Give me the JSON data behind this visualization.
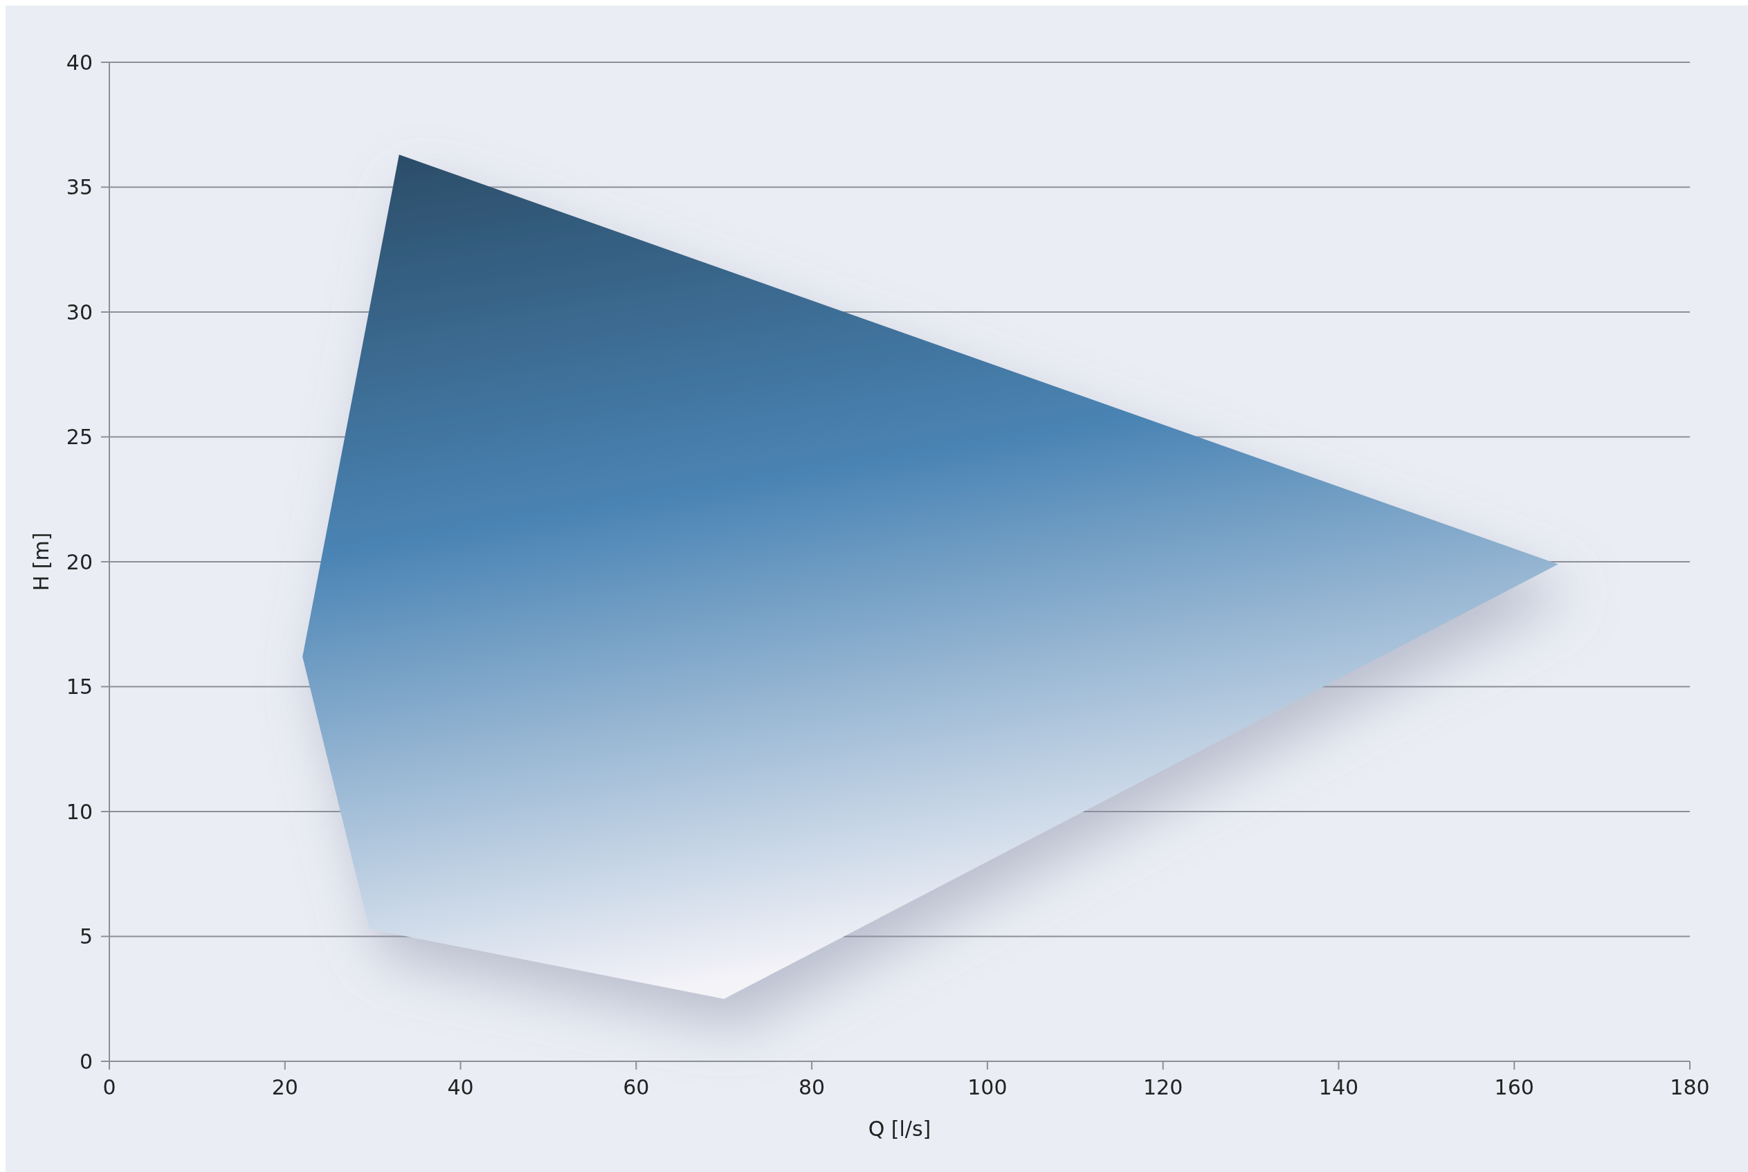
{
  "chart_data": {
    "type": "area",
    "xlabel": "Q [l/s]",
    "ylabel": "H [m]",
    "series": [
      {
        "color": "#4a84b4",
        "x": [
          33,
          165,
          70,
          29.6,
          22,
          33
        ],
        "values": [
          36.3,
          19.9,
          2.5,
          5.3,
          16.2,
          36.3
        ]
      }
    ],
    "xlim": [
      0,
      180
    ],
    "xticks": [
      0,
      20,
      40,
      60,
      80,
      100,
      120,
      140,
      160,
      180
    ],
    "ylim": [
      0,
      40
    ],
    "yticks": [
      0,
      5,
      10,
      15,
      20,
      25,
      30,
      35,
      40
    ],
    "grid": "y"
  }
}
